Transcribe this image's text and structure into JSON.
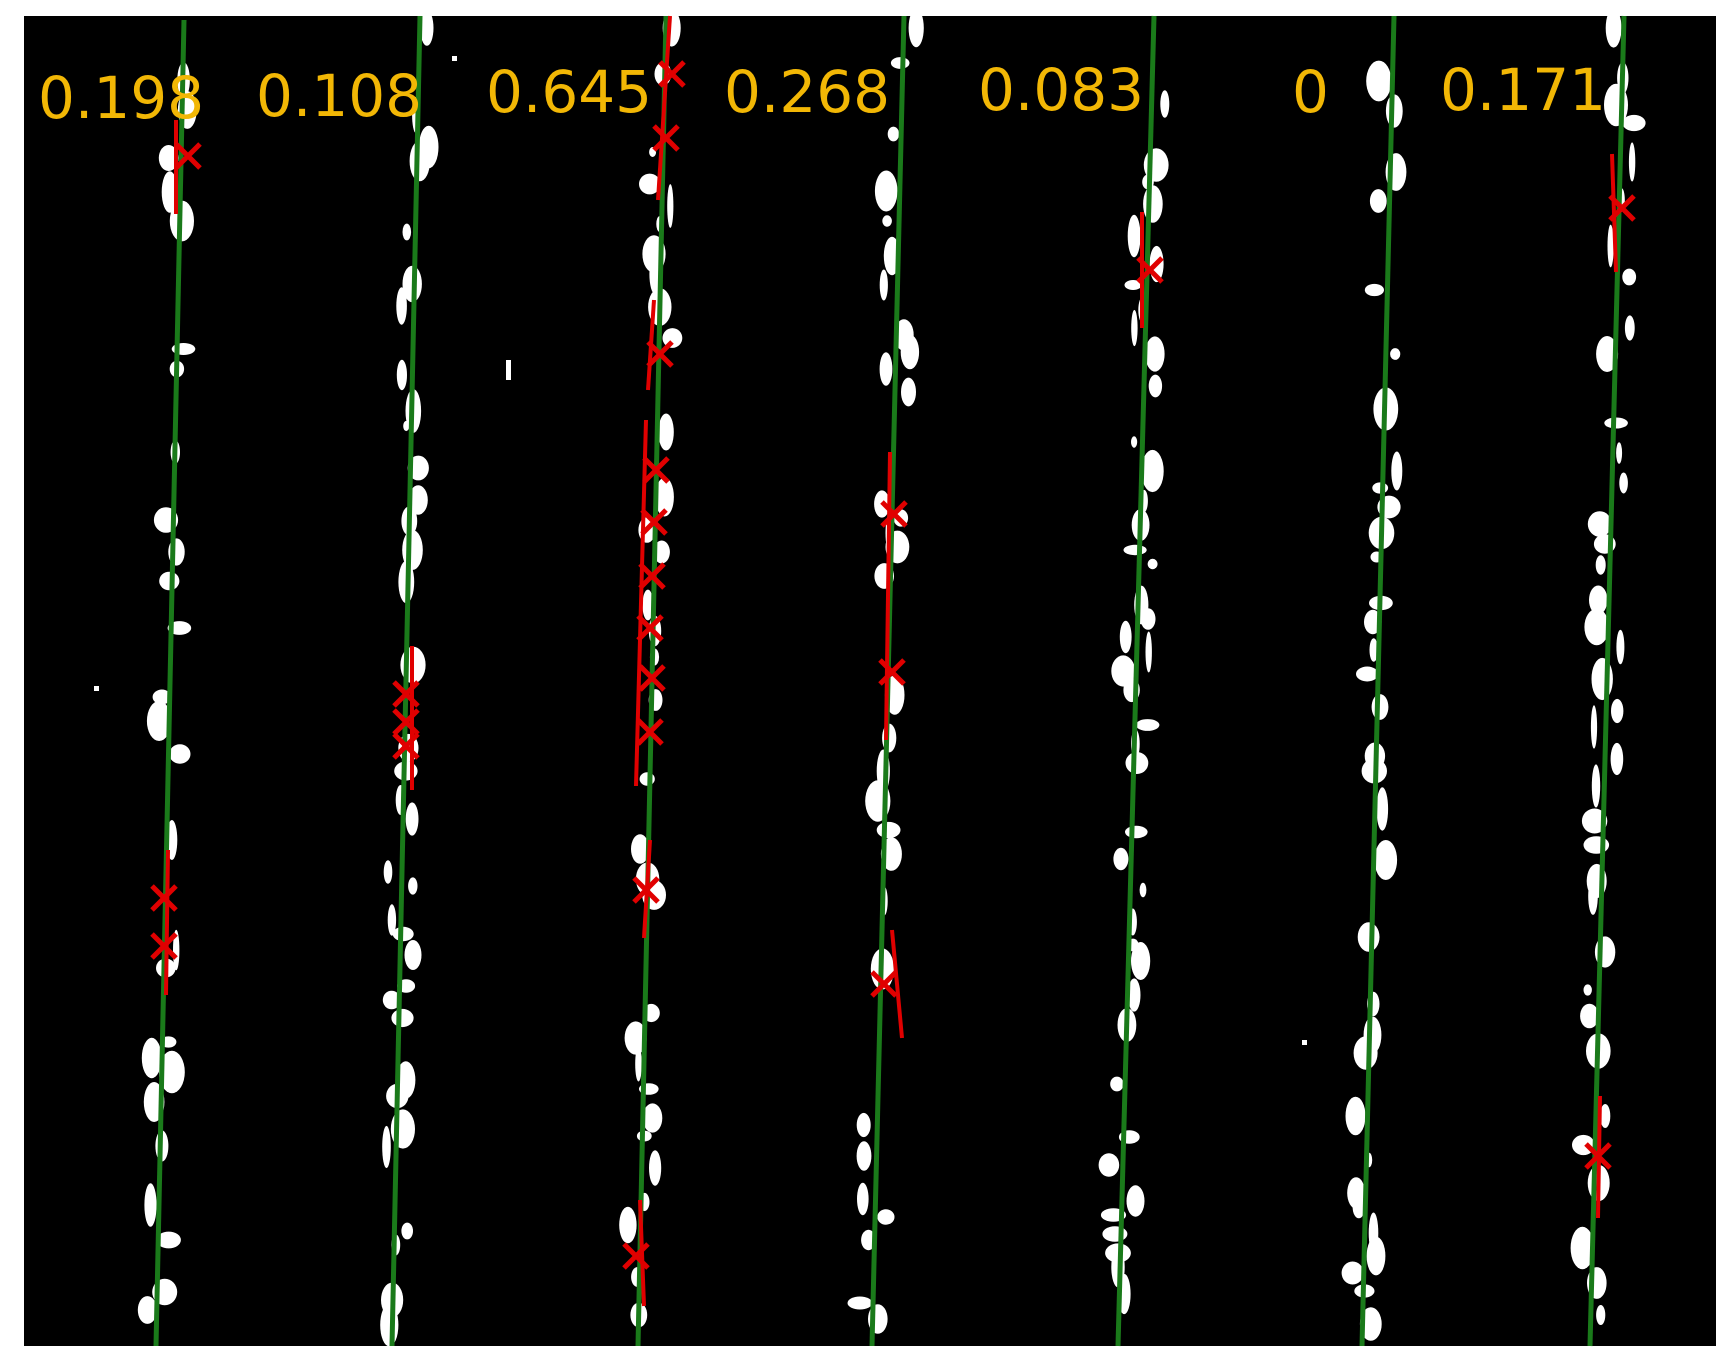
{
  "image": {
    "background_color": "#000000",
    "border_color": "#ffffff",
    "blob_color": "#ffffff",
    "fitted_line_color": "#1a7a1a",
    "detected_segment_color": "#e00000",
    "marker_color": "#e00000",
    "label_color": "#f2b705"
  },
  "rows": [
    {
      "id": "row-1",
      "score": "0.198"
    },
    {
      "id": "row-2",
      "score": "0.108"
    },
    {
      "id": "row-3",
      "score": "0.645"
    },
    {
      "id": "row-4",
      "score": "0.268"
    },
    {
      "id": "row-5",
      "score": "0.083"
    },
    {
      "id": "row-6",
      "score": "0"
    },
    {
      "id": "row-7",
      "score": "0.171"
    }
  ]
}
